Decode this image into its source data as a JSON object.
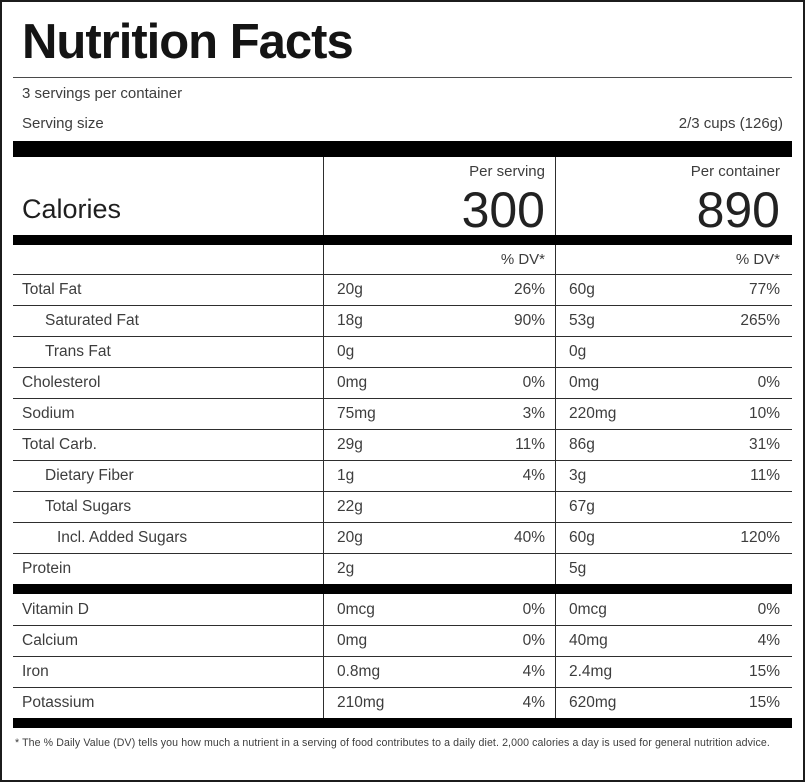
{
  "label": {
    "title": "Nutrition Facts",
    "servings_per_container": "3 servings per container",
    "serving_size_label": "Serving size",
    "serving_size_value": "2/3 cups (126g)",
    "calories": {
      "label": "Calories",
      "per_serving_label": "Per serving",
      "per_serving_value": "300",
      "per_container_label": "Per container",
      "per_container_value": "890"
    },
    "dv_header_serving": "% DV*",
    "dv_header_container": "% DV*",
    "nutrients": [
      {
        "name": "Total Fat",
        "indent": 0,
        "serving_amount": "20g",
        "serving_dv": "26%",
        "container_amount": "60g",
        "container_dv": "77%"
      },
      {
        "name": "Saturated Fat",
        "indent": 1,
        "serving_amount": "18g",
        "serving_dv": "90%",
        "container_amount": "53g",
        "container_dv": "265%"
      },
      {
        "name": "Trans Fat",
        "indent": 1,
        "serving_amount": "0g",
        "serving_dv": "",
        "container_amount": "0g",
        "container_dv": ""
      },
      {
        "name": "Cholesterol",
        "indent": 0,
        "serving_amount": "0mg",
        "serving_dv": "0%",
        "container_amount": "0mg",
        "container_dv": "0%"
      },
      {
        "name": "Sodium",
        "indent": 0,
        "serving_amount": "75mg",
        "serving_dv": "3%",
        "container_amount": "220mg",
        "container_dv": "10%"
      },
      {
        "name": "Total Carb.",
        "indent": 0,
        "serving_amount": "29g",
        "serving_dv": "11%",
        "container_amount": "86g",
        "container_dv": "31%"
      },
      {
        "name": "Dietary Fiber",
        "indent": 1,
        "serving_amount": "1g",
        "serving_dv": "4%",
        "container_amount": "3g",
        "container_dv": "11%"
      },
      {
        "name": "Total Sugars",
        "indent": 1,
        "serving_amount": "22g",
        "serving_dv": "",
        "container_amount": "67g",
        "container_dv": ""
      },
      {
        "name": "Incl. Added Sugars",
        "indent": 2,
        "serving_amount": "20g",
        "serving_dv": "40%",
        "container_amount": "60g",
        "container_dv": "120%"
      },
      {
        "name": "Protein",
        "indent": 0,
        "serving_amount": "2g",
        "serving_dv": "",
        "container_amount": "5g",
        "container_dv": ""
      }
    ],
    "vitamins": [
      {
        "name": "Vitamin D",
        "indent": 0,
        "serving_amount": "0mcg",
        "serving_dv": "0%",
        "container_amount": "0mcg",
        "container_dv": "0%"
      },
      {
        "name": "Calcium",
        "indent": 0,
        "serving_amount": "0mg",
        "serving_dv": "0%",
        "container_amount": "40mg",
        "container_dv": "4%"
      },
      {
        "name": "Iron",
        "indent": 0,
        "serving_amount": "0.8mg",
        "serving_dv": "4%",
        "container_amount": "2.4mg",
        "container_dv": "15%"
      },
      {
        "name": "Potassium",
        "indent": 0,
        "serving_amount": "210mg",
        "serving_dv": "4%",
        "container_amount": "620mg",
        "container_dv": "15%"
      }
    ],
    "footnote": "* The % Daily Value (DV) tells you how much a nutrient in a serving of food contributes to a daily diet. 2,000 calories a day is used for general nutrition advice.",
    "colors": {
      "background": "#ffffff",
      "text": "#3d3d3d",
      "title": "#141414",
      "separator_bar": "#000000",
      "rule": "#2e2e2e"
    }
  }
}
